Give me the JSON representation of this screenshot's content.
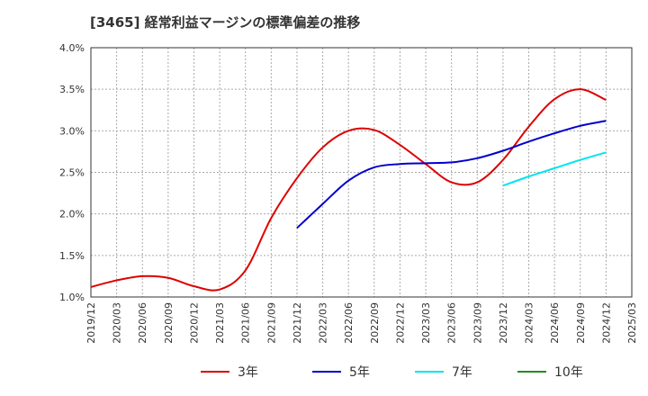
{
  "chart_data": {
    "type": "line",
    "title": "[3465]  経常利益マージンの標準偏差の推移",
    "xlabel": "",
    "ylabel": "",
    "x": [
      "2019/12",
      "2020/03",
      "2020/06",
      "2020/09",
      "2020/12",
      "2021/03",
      "2021/06",
      "2021/09",
      "2021/12",
      "2022/03",
      "2022/06",
      "2022/09",
      "2022/12",
      "2023/03",
      "2023/06",
      "2023/09",
      "2023/12",
      "2024/03",
      "2024/06",
      "2024/09",
      "2024/12",
      "2025/03"
    ],
    "y_ticks": [
      "1.0%",
      "1.5%",
      "2.0%",
      "2.5%",
      "3.0%",
      "3.5%",
      "4.0%"
    ],
    "ylim": [
      1.0,
      4.0
    ],
    "grid": true,
    "legend_position": "bottom",
    "series": [
      {
        "name": "3年",
        "color": "#dd0000",
        "x": [
          "2019/12",
          "2020/03",
          "2020/06",
          "2020/09",
          "2020/12",
          "2021/03",
          "2021/06",
          "2021/09",
          "2021/12",
          "2022/03",
          "2022/06",
          "2022/09",
          "2022/12",
          "2023/03",
          "2023/06",
          "2023/09",
          "2023/12",
          "2024/03",
          "2024/06",
          "2024/09",
          "2024/12"
        ],
        "values": [
          1.12,
          1.2,
          1.25,
          1.23,
          1.13,
          1.09,
          1.32,
          1.95,
          2.43,
          2.8,
          3.0,
          3.01,
          2.83,
          2.6,
          2.38,
          2.38,
          2.65,
          3.05,
          3.38,
          3.5,
          3.37
        ]
      },
      {
        "name": "5年",
        "color": "#0000cc",
        "x": [
          "2021/12",
          "2022/03",
          "2022/06",
          "2022/09",
          "2022/12",
          "2023/03",
          "2023/06",
          "2023/09",
          "2023/12",
          "2024/03",
          "2024/06",
          "2024/09",
          "2024/12"
        ],
        "values": [
          1.83,
          2.12,
          2.4,
          2.56,
          2.6,
          2.61,
          2.62,
          2.67,
          2.76,
          2.87,
          2.97,
          3.06,
          3.12
        ]
      },
      {
        "name": "7年",
        "color": "#00e5ee",
        "x": [
          "2023/12",
          "2024/03",
          "2024/06",
          "2024/09",
          "2024/12"
        ],
        "values": [
          2.34,
          2.45,
          2.55,
          2.65,
          2.74
        ]
      },
      {
        "name": "10年",
        "color": "#228b22",
        "x": [],
        "values": []
      }
    ]
  }
}
